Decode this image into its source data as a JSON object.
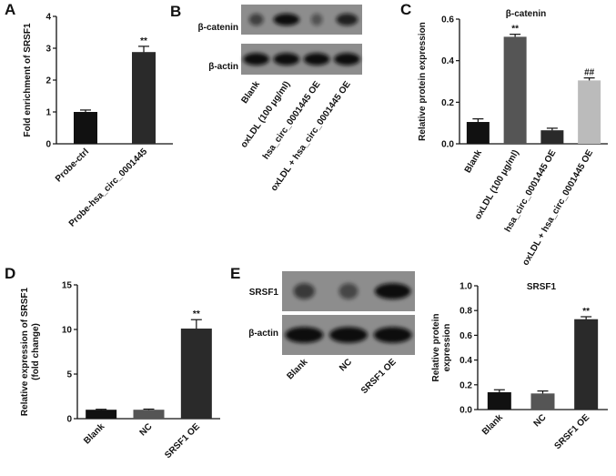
{
  "chart_data": [
    {
      "type": "bar",
      "panel": "A",
      "ylabel": [
        "Fold enrichment of SRSF1"
      ],
      "categories": [
        "Probe-ctrl",
        "Probe-hsa_circ_0001445"
      ],
      "values": [
        1.0,
        2.88
      ],
      "errors": [
        0.06,
        0.18
      ],
      "colors": [
        "#111111",
        "#2a2a2a"
      ],
      "value_annotations": [
        null,
        "**"
      ],
      "ylim": [
        0,
        4
      ],
      "yticks": [
        0,
        1,
        2,
        3,
        4
      ]
    },
    {
      "type": "bar",
      "panel": "C",
      "title": "β-catenin",
      "ylabel": [
        "Relative protein expression"
      ],
      "categories": [
        "Blank",
        "oxLDL (100 μg/ml)",
        "hsa_circ_0001445 OE",
        "oxLDL + hsa_circ_0001445 OE"
      ],
      "values": [
        0.105,
        0.515,
        0.065,
        0.305
      ],
      "errors": [
        0.015,
        0.012,
        0.01,
        0.012
      ],
      "colors": [
        "#111111",
        "#555555",
        "#2a2a2a",
        "#bbbbbb"
      ],
      "value_annotations": [
        null,
        "**",
        null,
        "##"
      ],
      "ylim": [
        0,
        0.6
      ],
      "yticks": [
        {
          "value": 0,
          "label": "0.0"
        },
        0.2,
        0.4,
        0.6
      ]
    },
    {
      "type": "bar",
      "panel": "D",
      "ylabel": [
        "Relative expression of SRSF1",
        "(fold change)"
      ],
      "categories": [
        "Blank",
        "NC",
        "SRSF1 OE"
      ],
      "values": [
        1.0,
        1.0,
        10.1
      ],
      "errors": [
        0.05,
        0.07,
        1.0
      ],
      "colors": [
        "#111111",
        "#555555",
        "#2a2a2a"
      ],
      "value_annotations": [
        null,
        null,
        "**"
      ],
      "ylim": [
        0,
        15
      ],
      "yticks": [
        0,
        5,
        10,
        15
      ]
    },
    {
      "type": "bar",
      "title": "SRSF1",
      "ylabel": [
        "Relative protein",
        "expression"
      ],
      "categories": [
        "Blank",
        "NC",
        "SRSF1 OE"
      ],
      "values": [
        0.14,
        0.13,
        0.73
      ],
      "errors": [
        0.02,
        0.02,
        0.02
      ],
      "colors": [
        "#111111",
        "#555555",
        "#2a2a2a"
      ],
      "value_annotations": [
        null,
        null,
        "**"
      ],
      "ylim": [
        0,
        1.0
      ],
      "yticks": [
        {
          "value": 0,
          "label": "0.0"
        },
        0.2,
        0.4,
        0.6,
        0.8,
        {
          "value": 1.0,
          "label": "1.0"
        }
      ]
    }
  ],
  "blots": [
    {
      "panel": "B",
      "rows": [
        "β-catenin",
        "β-actin"
      ],
      "lanes": [
        "Blank",
        "oxLDL (100 μg/ml)",
        "hsa_circ_0001445 OE",
        "oxLDL + hsa_circ_0001445 OE"
      ]
    },
    {
      "panel": "E",
      "rows": [
        "SRSF1",
        "β-actin"
      ],
      "lanes": [
        "Blank",
        "NC",
        "SRSF1 OE"
      ]
    }
  ]
}
